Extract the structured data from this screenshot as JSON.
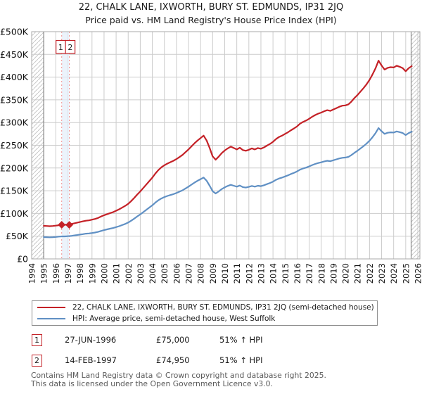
{
  "chart_data": {
    "type": "line",
    "title": "22, CHALK LANE, IXWORTH, BURY ST. EDMUNDS, IP31 2JQ",
    "subtitle": "Price paid vs. HM Land Registry's House Price Index (HPI)",
    "x_axis": {
      "min": 1994,
      "max": 2026,
      "tick_step": 1,
      "labels_rotated": true
    },
    "y_axis": {
      "min": 0,
      "max": 500,
      "tick_step": 50,
      "unit": "GBP thousands",
      "tick_labels": [
        "£0",
        "£50K",
        "£100K",
        "£150K",
        "£200K",
        "£250K",
        "£300K",
        "£350K",
        "£400K",
        "£450K",
        "£500K"
      ]
    },
    "grid": true,
    "no_data_hatch": {
      "before": 1995.0,
      "after": 2025.45
    },
    "sale_band": {
      "from": 1996.49,
      "to": 1997.12
    },
    "sale_points": [
      {
        "label": "1",
        "year": 1996.49,
        "value": 75.0
      },
      {
        "label": "2",
        "year": 1997.12,
        "value": 74.95
      }
    ],
    "series": [
      {
        "name": "22, CHALK LANE, IXWORTH, BURY ST. EDMUNDS, IP31 2JQ (semi-detached house)",
        "color": "#c42127",
        "start": 1995.0,
        "step": 0.25,
        "values": [
          72.7,
          72.4,
          72,
          72.4,
          73.2,
          74.2,
          75,
          75.1,
          75.8,
          76.5,
          78,
          79.5,
          81.1,
          82.6,
          84.1,
          84.8,
          86.4,
          87.9,
          90.1,
          93.2,
          96.2,
          98.5,
          100.7,
          103,
          106.1,
          109.1,
          112.9,
          116.7,
          121.2,
          127.3,
          134.1,
          141.7,
          148.5,
          156,
          163.6,
          171.2,
          178.8,
          187.9,
          195.4,
          201.5,
          206,
          209.8,
          212.9,
          215.9,
          219.7,
          224.2,
          228.8,
          234.8,
          240.9,
          247.7,
          254.5,
          260.6,
          265.9,
          271.2,
          260.6,
          243.9,
          225.7,
          218.2,
          225,
          232.6,
          238.6,
          243.2,
          247,
          243.9,
          240.9,
          244.7,
          239.4,
          237.9,
          240.1,
          243.2,
          240.9,
          243.9,
          242.4,
          245.4,
          249.2,
          253,
          257.6,
          263.6,
          268.2,
          271.2,
          275,
          278.8,
          283.3,
          287.1,
          291.6,
          297.7,
          301.5,
          304.5,
          308.3,
          312.8,
          316.6,
          319.7,
          322,
          325,
          327.2,
          325.7,
          328.8,
          331.8,
          334.8,
          337.1,
          337.8,
          340.1,
          346.2,
          353.8,
          360.6,
          368.1,
          375.7,
          384.1,
          393.9,
          406,
          419.7,
          436.3,
          425.7,
          416.6,
          420.4,
          421.9,
          421.2,
          425,
          422.7,
          419.7,
          412.9,
          419.7,
          424.2
        ]
      },
      {
        "name": "HPI: Average price, semi-detached house, West Suffolk",
        "color": "#6090c4",
        "start": 1995.0,
        "step": 0.25,
        "values": [
          48,
          47.8,
          47.5,
          47.8,
          48.3,
          49,
          49.5,
          49.6,
          50,
          50.5,
          51.5,
          52.5,
          53.5,
          54.5,
          55.5,
          56,
          57,
          58,
          59.5,
          61.5,
          63.5,
          65,
          66.5,
          68,
          70,
          72,
          74.5,
          77,
          80,
          84,
          88.5,
          93.5,
          98,
          103,
          108,
          113,
          118,
          124,
          129,
          133,
          136,
          138.5,
          140.5,
          142.5,
          145,
          148,
          151,
          155,
          159,
          163.5,
          168,
          172,
          175.5,
          179,
          172,
          161,
          149,
          144,
          148.5,
          153.5,
          157.5,
          160.5,
          163,
          161,
          159,
          161.5,
          158,
          157,
          158.5,
          160.5,
          159,
          161,
          160,
          162,
          164.5,
          167,
          170,
          174,
          177,
          179,
          181.5,
          184,
          187,
          189.5,
          192.5,
          196.5,
          199,
          201,
          203.5,
          206.5,
          209,
          211,
          212.5,
          214.5,
          216,
          215,
          217,
          219,
          221,
          222.5,
          223,
          224.5,
          228.5,
          233.5,
          238,
          243,
          248,
          253.5,
          260,
          268,
          277,
          288,
          281,
          275,
          277.5,
          278.5,
          278,
          280.5,
          279,
          277,
          272.5,
          277,
          280
        ]
      }
    ],
    "colors": {
      "grid": "#cccccc",
      "plot_border": "#aaaaaa",
      "hatch": "#c8c8c8",
      "hatch_edge": "#888888",
      "sale_line": "#ef8f8f",
      "sale_band": "#e4eefa",
      "tick_text": "#111111"
    }
  },
  "transactions": [
    {
      "label": "1",
      "date": "27-JUN-1996",
      "price": "£75,000",
      "hpi": "51% ↑ HPI"
    },
    {
      "label": "2",
      "date": "14-FEB-1997",
      "price": "£74,950",
      "hpi": "51% ↑ HPI"
    }
  ],
  "footer": {
    "line1": "Contains HM Land Registry data © Crown copyright and database right 2025.",
    "line2": "This data is licensed under the Open Government Licence v3.0."
  }
}
